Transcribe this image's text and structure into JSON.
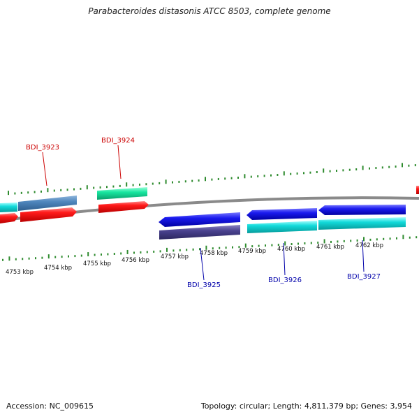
{
  "title": "Parabacteroides distasonis ATCC 8503, complete genome",
  "footer": {
    "accession": "Accession: NC_009615",
    "summary": "Topology: circular; Length: 4,811,379 bp; Genes: 3,954"
  },
  "colors": {
    "backbone": "#8a8a8a",
    "ticks": "#2e8b2e",
    "top_label": "#cc0000",
    "bottom_label": "#0000aa"
  },
  "scale_labels": [
    "4753 kbp",
    "4754 kbp",
    "4755 kbp",
    "4756 kbp",
    "4757 kbp",
    "4758 kbp",
    "4759 kbp",
    "4760 kbp",
    "4761 kbp",
    "4762 kbp"
  ],
  "gene_labels": [
    {
      "name": "BDI_3923",
      "strand": "top"
    },
    {
      "name": "BDI_3924",
      "strand": "top"
    },
    {
      "name": "BDI_3925",
      "strand": "bottom"
    },
    {
      "name": "BDI_3926",
      "strand": "bottom"
    },
    {
      "name": "BDI_3927",
      "strand": "bottom"
    }
  ]
}
